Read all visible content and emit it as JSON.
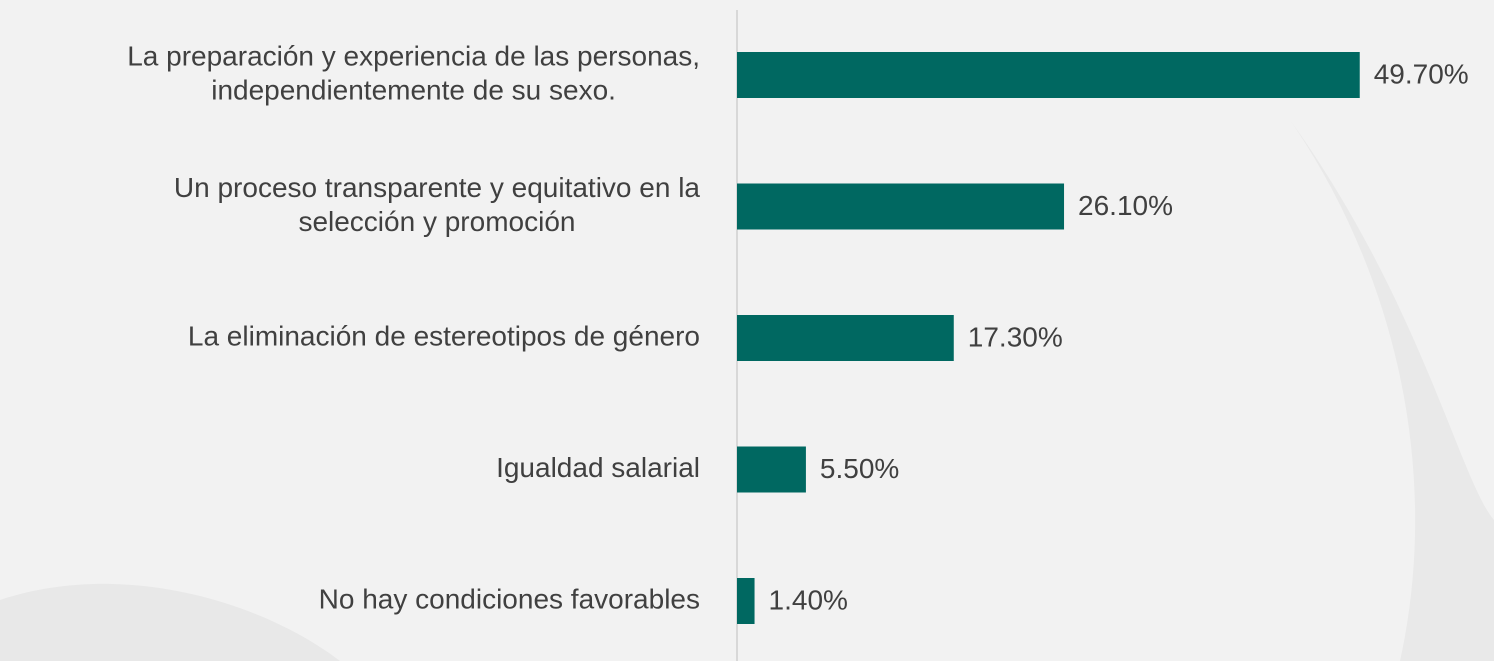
{
  "chart_data": {
    "type": "barh",
    "categories": [
      [
        "La preparación y experiencia de las personas,",
        "independientemente de su sexo."
      ],
      [
        "Un proceso transparente y equitativo en la",
        "selección y promoción"
      ],
      [
        "La eliminación de estereotipos de género"
      ],
      [
        "Igualdad salarial"
      ],
      [
        "No hay condiciones favorables"
      ]
    ],
    "values": [
      49.7,
      26.1,
      17.3,
      5.5,
      1.4
    ],
    "value_labels": [
      "49.70%",
      "26.10%",
      "17.30%",
      "5.50%",
      "1.40%"
    ],
    "color": "#006861"
  }
}
